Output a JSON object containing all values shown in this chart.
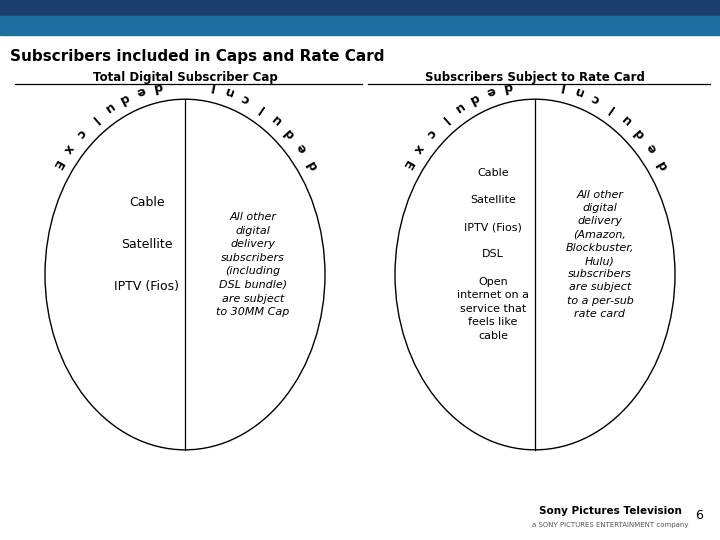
{
  "title": "Subscribers included in Caps and Rate Card",
  "title_fontsize": 11,
  "title_color": "#000000",
  "header_dark_color": "#1a3f6f",
  "header_mid_color": "#1e6fa0",
  "header_light_color": "#3a9fd0",
  "bg_color": "#ffffff",
  "left_section_title": "Total Digital Subscriber Cap",
  "right_section_title": "Subscribers Subject to Rate Card",
  "left_excluded_items": "Cable\n\nSatellite\n\nIPTV (Fios)",
  "left_included_items": "All other\ndigital\ndelivery\nsubscribers\n(including\nDSL bundle)\nare subject\nto 30MM Cap",
  "right_excluded_items": "Cable\n\nSatellite\n\nIPTV (Fios)\n\nDSL\n\nOpen\ninternet on a\nservice that\nfeels like\ncable",
  "right_included_items": "All other\ndigital\ndelivery\n(Amazon,\nBlockbuster,\nHulu)\nsubscribers\nare subject\nto a per-sub\nrate card",
  "circle_color": "#000000",
  "line_color": "#000000",
  "text_color": "#000000",
  "font_family": "DejaVu Sans",
  "page_num": "6",
  "logo_text": "Sony Pictures Television",
  "logo_subtext": "a SONY PICTURES ENTERTAINMENT company"
}
